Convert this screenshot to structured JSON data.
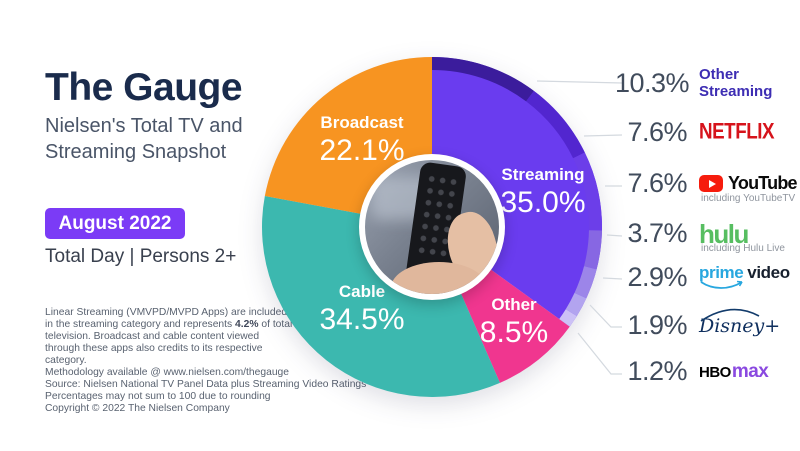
{
  "header": {
    "title": "The Gauge",
    "subtitle_line1": "Nielsen's Total TV and",
    "subtitle_line2": "Streaming Snapshot",
    "badge": "August 2022",
    "scope": "Total Day | Persons 2+"
  },
  "footnote": {
    "body_pre": "Linear Streaming (VMVPD/MVPD Apps) are included in the streaming category and represents ",
    "body_bold": "4.2%",
    "body_post": " of total television. Broadcast and cable content viewed through these apps also credits to its respective category.",
    "methodology": "Methodology available @ www.nielsen.com/thegauge",
    "source": "Source: Nielsen National TV Panel Data plus Streaming Video Ratings",
    "rounding": "Percentages may not sum to 100 due to rounding",
    "copyright": "Copyright © 2022 The Nielsen Company"
  },
  "chart_data": {
    "type": "pie",
    "title": "The Gauge — Nielsen's Total TV and Streaming Snapshot, August 2022",
    "unit": "% share of total TV viewing",
    "slices": [
      {
        "label": "Streaming",
        "value": 35.0,
        "display": "35.0%",
        "color": "#6A3CEF"
      },
      {
        "label": "Other",
        "value": 8.5,
        "display": "8.5%",
        "color": "#F0368F"
      },
      {
        "label": "Cable",
        "value": 34.5,
        "display": "34.5%",
        "color": "#3CB8AF"
      },
      {
        "label": "Broadcast",
        "value": 22.1,
        "display": "22.1%",
        "color": "#F79421"
      }
    ],
    "streaming_breakdown": [
      {
        "label": "Other Streaming",
        "value": 10.3,
        "display": "10.3%",
        "rim_color": "#3B1C9C",
        "line1": "Other",
        "line2": "Streaming"
      },
      {
        "label": "Netflix",
        "value": 7.6,
        "display": "7.6%",
        "rim_color": "#5226CF",
        "wordmark": "NETFLIX"
      },
      {
        "label": "YouTube",
        "value": 7.6,
        "display": "7.6%",
        "rim_color": "#6C3EE9",
        "wordmark": "YouTube",
        "sub": "including YouTubeTV"
      },
      {
        "label": "Hulu",
        "value": 3.7,
        "display": "3.7%",
        "rim_color": "#8767E3",
        "wordmark": "hulu",
        "sub": "including Hulu Live"
      },
      {
        "label": "Prime Video",
        "value": 2.9,
        "display": "2.9%",
        "rim_color": "#9C85E9",
        "wordmark1": "prime",
        "wordmark2": "video"
      },
      {
        "label": "Disney+",
        "value": 1.9,
        "display": "1.9%",
        "rim_color": "#B2A4EF",
        "wordmark": "Disney+"
      },
      {
        "label": "HBO Max",
        "value": 1.2,
        "display": "1.2%",
        "rim_color": "#CCC1F6",
        "wordmark1": "HBO",
        "wordmark2": "max"
      }
    ]
  }
}
